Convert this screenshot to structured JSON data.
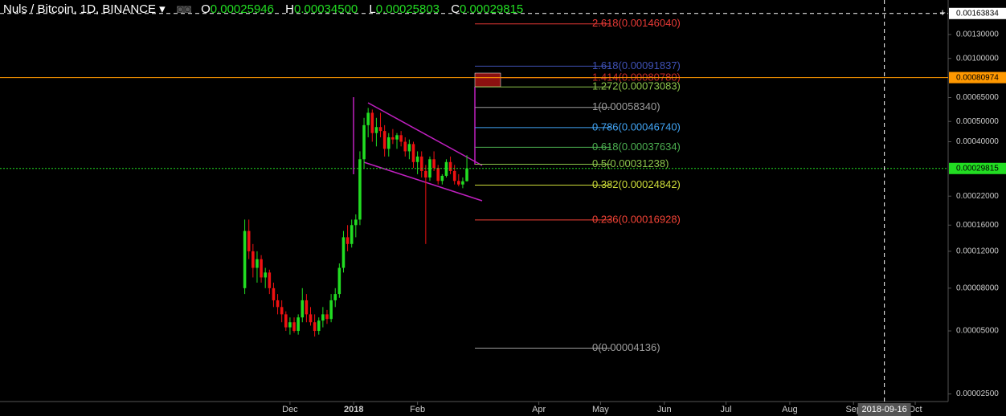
{
  "header": {
    "symbol": "Nuls / Bitcoin, 1D, BINANCE",
    "ohlc": [
      {
        "letter": "O",
        "text": "0.00025946"
      },
      {
        "letter": "H",
        "text": "0.00034500"
      },
      {
        "letter": "L",
        "text": "0.00025803"
      },
      {
        "letter": "C",
        "text": "0.00029815"
      }
    ]
  },
  "chart_data": {
    "type": "candlestick",
    "log_scale": true,
    "up_color": "#22dd22",
    "down_color": "#ee1111",
    "x": [
      "2017-11-09",
      "2017-11-11",
      "2017-11-13",
      "2017-11-15",
      "2017-11-17",
      "2017-11-19",
      "2017-11-21",
      "2017-11-23",
      "2017-11-25",
      "2017-11-27",
      "2017-11-29",
      "2017-12-01",
      "2017-12-03",
      "2017-12-05",
      "2017-12-07",
      "2017-12-09",
      "2017-12-11",
      "2017-12-13",
      "2017-12-15",
      "2017-12-17",
      "2017-12-19",
      "2017-12-21",
      "2017-12-23",
      "2017-12-25",
      "2017-12-27",
      "2017-12-29",
      "2017-12-31",
      "2018-01-02",
      "2018-01-04",
      "2018-01-06",
      "2018-01-08",
      "2018-01-10",
      "2018-01-12",
      "2018-01-14",
      "2018-01-16",
      "2018-01-18",
      "2018-01-20",
      "2018-01-22",
      "2018-01-24",
      "2018-01-26",
      "2018-01-28",
      "2018-01-30",
      "2018-02-01",
      "2018-02-03",
      "2018-02-05",
      "2018-02-07",
      "2018-02-09",
      "2018-02-11",
      "2018-02-13",
      "2018-02-15",
      "2018-02-17",
      "2018-02-19",
      "2018-02-21",
      "2018-02-23",
      "2018-02-25"
    ],
    "open": [
      8e-05,
      0.00015,
      0.00012,
      0.0001,
      0.00011,
      9e-05,
      9.5e-05,
      8e-05,
      7e-05,
      6.5e-05,
      6e-05,
      5.2e-05,
      5.5e-05,
      5e-05,
      5.8e-05,
      7e-05,
      6e-05,
      5.5e-05,
      5e-05,
      5.6e-05,
      6e-05,
      5.7e-05,
      7e-05,
      7.5e-05,
      0.0001,
      0.00014,
      0.00013,
      0.00016,
      0.00017,
      0.00033,
      0.00048,
      0.00055,
      0.00044,
      0.00047,
      0.00045,
      0.00037,
      0.00042,
      0.00041,
      0.00043,
      0.0004,
      0.00036,
      0.00039,
      0.00032,
      0.00034,
      0.00029,
      0.00027,
      0.00033,
      0.0003,
      0.00026,
      0.000275,
      0.00032,
      0.00029,
      0.00026,
      0.00025,
      0.00025946
    ],
    "high": [
      0.00017,
      0.00017,
      0.00013,
      0.00012,
      0.000115,
      0.0001,
      9.8e-05,
      8.5e-05,
      7.5e-05,
      7e-05,
      6.2e-05,
      5.8e-05,
      5.8e-05,
      6e-05,
      8e-05,
      7.5e-05,
      6.5e-05,
      6e-05,
      5.8e-05,
      6.5e-05,
      6.3e-05,
      7.5e-05,
      8e-05,
      0.000105,
      0.00015,
      0.00016,
      0.00017,
      0.00018,
      0.00036,
      0.00052,
      0.00058,
      0.00057,
      0.00052,
      0.00055,
      0.00048,
      0.00044,
      0.00046,
      0.00044,
      0.00045,
      0.00042,
      0.00041,
      0.0004,
      0.00036,
      0.00036,
      0.00031,
      0.00034,
      0.00036,
      0.00031,
      0.00028,
      0.00033,
      0.00034,
      0.00031,
      0.00028,
      0.00027,
      0.000345
    ],
    "low": [
      7.5e-05,
      0.00011,
      9e-05,
      8.5e-05,
      8.5e-05,
      8e-05,
      7.5e-05,
      6.5e-05,
      6e-05,
      5.5e-05,
      5e-05,
      4.8e-05,
      4.9e-05,
      4.8e-05,
      5.5e-05,
      5.5e-05,
      5.3e-05,
      4.7e-05,
      4.8e-05,
      5.2e-05,
      5.4e-05,
      5.5e-05,
      6.5e-05,
      7.2e-05,
      9.5e-05,
      0.00012,
      0.000125,
      0.00014,
      0.00016,
      0.0003,
      0.00042,
      0.0004,
      0.00038,
      0.00042,
      0.00034,
      0.00034,
      0.00039,
      0.00037,
      0.00038,
      0.00034,
      0.00033,
      0.0003,
      0.00028,
      0.00027,
      0.00013,
      0.00026,
      0.00029,
      0.00025,
      0.00025,
      0.00027,
      0.00028,
      0.00025,
      0.000245,
      0.00024,
      0.00025803
    ],
    "close": [
      0.00015,
      0.00012,
      0.0001,
      0.00011,
      9e-05,
      9.5e-05,
      8e-05,
      7e-05,
      6.5e-05,
      6e-05,
      5.2e-05,
      5.5e-05,
      5e-05,
      5.8e-05,
      7e-05,
      6e-05,
      5.5e-05,
      5e-05,
      5.6e-05,
      6e-05,
      5.7e-05,
      7e-05,
      7.5e-05,
      0.0001,
      0.00014,
      0.00013,
      0.00016,
      0.00017,
      0.00033,
      0.00048,
      0.00055,
      0.00044,
      0.00047,
      0.00045,
      0.00037,
      0.00042,
      0.00041,
      0.00043,
      0.0004,
      0.00036,
      0.00039,
      0.00032,
      0.00034,
      0.00029,
      0.00027,
      0.00033,
      0.0003,
      0.00026,
      0.000275,
      0.00032,
      0.00029,
      0.00026,
      0.00025,
      0.000259,
      0.00029815
    ],
    "xlim": [
      "2017-07-13",
      "2018-10-17"
    ],
    "xticks": [
      {
        "value": "2017-12-01",
        "label": "Dec"
      },
      {
        "value": "2018-01-01",
        "label": "2018"
      },
      {
        "value": "2018-02-01",
        "label": "Feb"
      },
      {
        "value": "2018-04-01",
        "label": "Apr"
      },
      {
        "value": "2018-05-01",
        "label": "May"
      },
      {
        "value": "2018-06-01",
        "label": "Jun"
      },
      {
        "value": "2018-07-01",
        "label": "Jul"
      },
      {
        "value": "2018-08-01",
        "label": "Aug"
      },
      {
        "value": "2018-09-01",
        "label": "Sep"
      },
      {
        "value": "2018-10-01",
        "label": "Oct"
      }
    ],
    "ylim": [
      2.3e-05,
      0.0019
    ],
    "yticks": [
      {
        "value": 0.0013,
        "label": "0.00130000"
      },
      {
        "value": 0.001,
        "label": "0.00100000"
      },
      {
        "value": 0.00065,
        "label": "0.00065000"
      },
      {
        "value": 0.0005,
        "label": "0.00050000"
      },
      {
        "value": 0.0004,
        "label": "0.00040000"
      },
      {
        "value": 0.00022,
        "label": "0.00022000"
      },
      {
        "value": 0.00016,
        "label": "0.00016000"
      },
      {
        "value": 0.00012,
        "label": "0.00012000"
      },
      {
        "value": 8e-05,
        "label": "0.00008000"
      },
      {
        "value": 5e-05,
        "label": "0.00005000"
      },
      {
        "value": 2.5e-05,
        "label": "0.00002500"
      }
    ],
    "fib_levels": [
      {
        "label": "2.618(0.00146040)",
        "value": 0.0014604,
        "color": "#e53935"
      },
      {
        "label": "1.618(0.00091837)",
        "value": 0.00091837,
        "color": "#3f51b5"
      },
      {
        "label": "1.414(0.00080780)",
        "value": 0.0008078,
        "color": "#c62828"
      },
      {
        "label": "1.272(0.00073083)",
        "value": 0.00073083,
        "color": "#8bc34a"
      },
      {
        "label": "1(0.00058340)",
        "value": 0.0005834,
        "color": "#9e9e9e"
      },
      {
        "label": "0.786(0.00046740)",
        "value": 0.0004674,
        "color": "#42a5f5"
      },
      {
        "label": "0.618(0.00037634)",
        "value": 0.00037634,
        "color": "#4caf50"
      },
      {
        "label": "0.5(0.00031238)",
        "value": 0.00031238,
        "color": "#8bc34a"
      },
      {
        "label": "0.382(0.00024842)",
        "value": 0.00024842,
        "color": "#cddc39"
      },
      {
        "label": "0.236(0.00016928)",
        "value": 0.00016928,
        "color": "#f44336"
      },
      {
        "label": "0(0.00004136)",
        "value": 4.136e-05,
        "color": "#9e9e9e"
      }
    ],
    "price_lines": [
      {
        "value": 0.00163834,
        "color": "#ffffff",
        "style": "dashed"
      },
      {
        "value": 0.00080974,
        "color": "#ff9800",
        "style": "solid"
      },
      {
        "value": 0.00029815,
        "color": "#22dd22",
        "style": "dotted"
      }
    ],
    "crosshair_x": "2018-09-16"
  }
}
